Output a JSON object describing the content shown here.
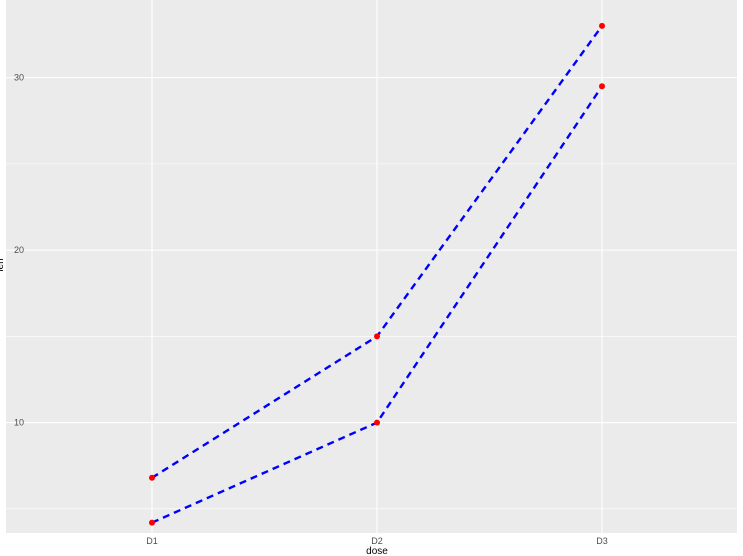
{
  "chart_data": {
    "type": "line",
    "title": "",
    "xlabel": "dose",
    "ylabel": "len",
    "categories": [
      "D1",
      "D2",
      "D3"
    ],
    "series": [
      {
        "values": [
          6.8,
          15.0,
          33.0
        ]
      },
      {
        "values": [
          4.2,
          10.0,
          29.5
        ]
      }
    ],
    "ylim": [
      3.6,
      34.5
    ],
    "y_ticks": [
      10,
      20,
      30
    ],
    "y_tick_labels": [
      "10",
      "20",
      "30"
    ],
    "grid": true,
    "legend": "none",
    "line_style": "dashed",
    "colors": {
      "panel_background": "#ebebeb",
      "grid": "#ffffff",
      "line": "#0000ff",
      "point": "#ff0000",
      "ylabel": "#0000ff"
    }
  }
}
